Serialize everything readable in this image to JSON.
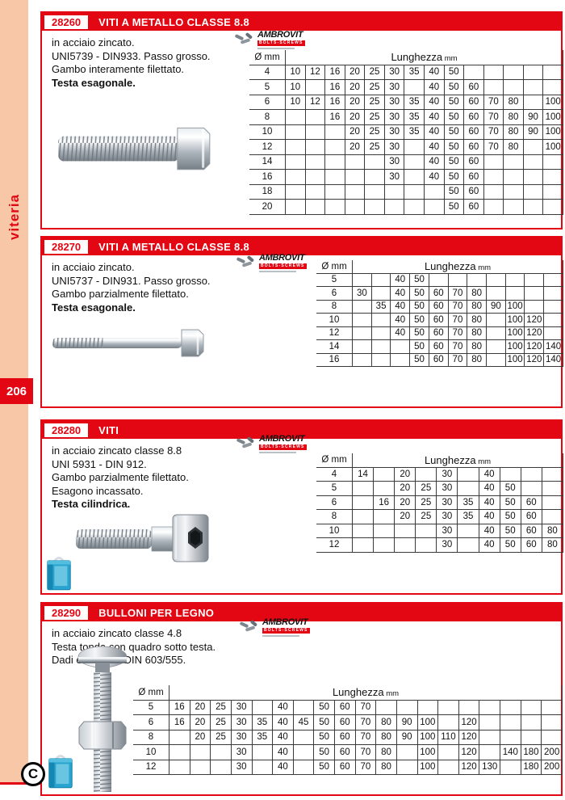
{
  "sidebar": {
    "category_label": "viteria",
    "page_number": "206"
  },
  "footer_logo": "C",
  "brand": {
    "name": "AMBROVIT",
    "tagline": "BOLTS-SCREWS"
  },
  "colors": {
    "accent_red": "#e30613",
    "sidebar_pink": "#f8c7a8",
    "grid": "#3a3a3a",
    "box_blue": "#29a3cf"
  },
  "icons": {
    "packaging": "blue-plastic-box-icon",
    "footer": "c-circle-logo",
    "brand": "screws-cluster-icon"
  },
  "sections": [
    {
      "code": "28260",
      "title": "VITI A METALLO CLASSE 8.8",
      "desc_lines": [
        "in acciaio zincato.",
        "UNI5739 - DIN933. Passo grosso.",
        "Gambo interamente filettato."
      ],
      "desc_bold": "Testa esagonale.",
      "product_image": "fully-threaded-hex-head-bolt",
      "table": {
        "diameter_header": "Ø mm",
        "length_header": "Lunghezza",
        "length_unit": "mm",
        "columns": 14,
        "rows": [
          {
            "d": "4",
            "cells": [
              "10",
              "12",
              "16",
              "20",
              "25",
              "30",
              "35",
              "40",
              "50",
              "",
              "",
              "",
              "",
              ""
            ]
          },
          {
            "d": "5",
            "cells": [
              "10",
              "",
              "16",
              "20",
              "25",
              "30",
              "",
              "40",
              "50",
              "60",
              "",
              "",
              "",
              ""
            ]
          },
          {
            "d": "6",
            "cells": [
              "10",
              "12",
              "16",
              "20",
              "25",
              "30",
              "35",
              "40",
              "50",
              "60",
              "70",
              "80",
              "",
              "100"
            ]
          },
          {
            "d": "8",
            "cells": [
              "",
              "",
              "16",
              "20",
              "25",
              "30",
              "35",
              "40",
              "50",
              "60",
              "70",
              "80",
              "90",
              "100"
            ]
          },
          {
            "d": "10",
            "cells": [
              "",
              "",
              "",
              "20",
              "25",
              "30",
              "35",
              "40",
              "50",
              "60",
              "70",
              "80",
              "90",
              "100"
            ]
          },
          {
            "d": "12",
            "cells": [
              "",
              "",
              "",
              "20",
              "25",
              "30",
              "",
              "40",
              "50",
              "60",
              "70",
              "80",
              "",
              "100"
            ]
          },
          {
            "d": "14",
            "cells": [
              "",
              "",
              "",
              "",
              "",
              "30",
              "",
              "40",
              "50",
              "60",
              "",
              "",
              "",
              ""
            ]
          },
          {
            "d": "16",
            "cells": [
              "",
              "",
              "",
              "",
              "",
              "30",
              "",
              "40",
              "50",
              "60",
              "",
              "",
              "",
              ""
            ]
          },
          {
            "d": "18",
            "cells": [
              "",
              "",
              "",
              "",
              "",
              "",
              "",
              "",
              "50",
              "60",
              "",
              "",
              "",
              ""
            ]
          },
          {
            "d": "20",
            "cells": [
              "",
              "",
              "",
              "",
              "",
              "",
              "",
              "",
              "50",
              "60",
              "",
              "",
              "",
              ""
            ]
          }
        ]
      }
    },
    {
      "code": "28270",
      "title": "VITI A METALLO CLASSE 8.8",
      "desc_lines": [
        "in acciaio zincato.",
        "UNI5737 - DIN931. Passo grosso.",
        "Gambo parzialmente filettato."
      ],
      "desc_bold": "Testa esagonale.",
      "product_image": "partially-threaded-hex-head-bolt",
      "table": {
        "diameter_header": "Ø mm",
        "length_header": "Lunghezza",
        "length_unit": "mm",
        "columns": 11,
        "rows": [
          {
            "d": "5",
            "cells": [
              "",
              "",
              "40",
              "50",
              "",
              "",
              "",
              "",
              "",
              "",
              ""
            ]
          },
          {
            "d": "6",
            "cells": [
              "30",
              "",
              "40",
              "50",
              "60",
              "70",
              "80",
              "",
              "",
              "",
              ""
            ]
          },
          {
            "d": "8",
            "cells": [
              "",
              "35",
              "40",
              "50",
              "60",
              "70",
              "80",
              "90",
              "100",
              "",
              ""
            ]
          },
          {
            "d": "10",
            "cells": [
              "",
              "",
              "40",
              "50",
              "60",
              "70",
              "80",
              "",
              "100",
              "120",
              ""
            ]
          },
          {
            "d": "12",
            "cells": [
              "",
              "",
              "40",
              "50",
              "60",
              "70",
              "80",
              "",
              "100",
              "120",
              ""
            ]
          },
          {
            "d": "14",
            "cells": [
              "",
              "",
              "",
              "50",
              "60",
              "70",
              "80",
              "",
              "100",
              "120",
              "140"
            ]
          },
          {
            "d": "16",
            "cells": [
              "",
              "",
              "",
              "50",
              "60",
              "70",
              "80",
              "",
              "100",
              "120",
              "140"
            ]
          }
        ]
      }
    },
    {
      "code": "28280",
      "title": "VITI",
      "desc_lines": [
        "in acciaio zincato classe 8.8",
        "UNI 5931 - DIN 912.",
        "Gambo parzialmente filettato.",
        "Esagono incassato."
      ],
      "desc_bold": "Testa cilindrica.",
      "product_image": "socket-head-cap-screw",
      "table": {
        "diameter_header": "Ø mm",
        "length_header": "Lunghezza",
        "length_unit": "mm",
        "columns": 10,
        "rows": [
          {
            "d": "4",
            "cells": [
              "14",
              "",
              "20",
              "",
              "30",
              "",
              "40",
              "",
              "",
              ""
            ]
          },
          {
            "d": "5",
            "cells": [
              "",
              "",
              "20",
              "25",
              "30",
              "",
              "40",
              "50",
              "",
              ""
            ]
          },
          {
            "d": "6",
            "cells": [
              "",
              "16",
              "20",
              "25",
              "30",
              "35",
              "40",
              "50",
              "60",
              ""
            ]
          },
          {
            "d": "8",
            "cells": [
              "",
              "",
              "20",
              "25",
              "30",
              "35",
              "40",
              "50",
              "60",
              ""
            ]
          },
          {
            "d": "10",
            "cells": [
              "",
              "",
              "",
              "",
              "30",
              "",
              "40",
              "50",
              "60",
              "80"
            ]
          },
          {
            "d": "12",
            "cells": [
              "",
              "",
              "",
              "",
              "30",
              "",
              "40",
              "50",
              "60",
              "80"
            ]
          }
        ]
      }
    },
    {
      "code": "28290",
      "title": "BULLONI PER LEGNO",
      "desc_lines": [
        "in acciaio zincato classe 4.8",
        "Testa tonda con quadro sotto testa.",
        "Dadi esagonali  DIN 603/555."
      ],
      "desc_bold": "",
      "product_image": "carriage-bolt-with-hex-nut",
      "table": {
        "diameter_header": "Ø mm",
        "length_header": "Lunghezza",
        "length_unit": "mm",
        "columns": 19,
        "rows": [
          {
            "d": "5",
            "cells": [
              "16",
              "20",
              "25",
              "30",
              "",
              "40",
              "",
              "50",
              "60",
              "70",
              "",
              "",
              "",
              "",
              "",
              "",
              "",
              "",
              ""
            ]
          },
          {
            "d": "6",
            "cells": [
              "16",
              "20",
              "25",
              "30",
              "35",
              "40",
              "45",
              "50",
              "60",
              "70",
              "80",
              "90",
              "100",
              "",
              "120",
              "",
              "",
              "",
              ""
            ]
          },
          {
            "d": "8",
            "cells": [
              "",
              "20",
              "25",
              "30",
              "35",
              "40",
              "",
              "50",
              "60",
              "70",
              "80",
              "90",
              "100",
              "110",
              "120",
              "",
              "",
              "",
              ""
            ]
          },
          {
            "d": "10",
            "cells": [
              "",
              "",
              "",
              "30",
              "",
              "40",
              "",
              "50",
              "60",
              "70",
              "80",
              "",
              "100",
              "",
              "120",
              "",
              "140",
              "180",
              "200"
            ]
          },
          {
            "d": "12",
            "cells": [
              "",
              "",
              "",
              "30",
              "",
              "40",
              "",
              "50",
              "60",
              "70",
              "80",
              "",
              "100",
              "",
              "120",
              "130",
              "",
              "180",
              "200"
            ]
          }
        ]
      }
    }
  ]
}
